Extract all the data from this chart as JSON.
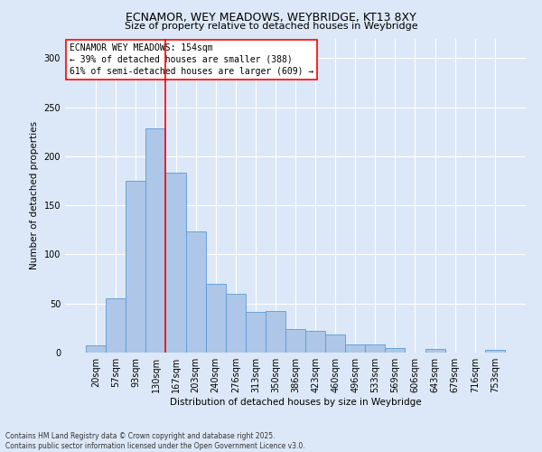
{
  "title_line1": "ECNAMOR, WEY MEADOWS, WEYBRIDGE, KT13 8XY",
  "title_line2": "Size of property relative to detached houses in Weybridge",
  "xlabel": "Distribution of detached houses by size in Weybridge",
  "ylabel": "Number of detached properties",
  "categories": [
    "20sqm",
    "57sqm",
    "93sqm",
    "130sqm",
    "167sqm",
    "203sqm",
    "240sqm",
    "276sqm",
    "313sqm",
    "350sqm",
    "386sqm",
    "423sqm",
    "460sqm",
    "496sqm",
    "533sqm",
    "569sqm",
    "606sqm",
    "643sqm",
    "679sqm",
    "716sqm",
    "753sqm"
  ],
  "values": [
    7,
    55,
    175,
    228,
    183,
    123,
    70,
    60,
    41,
    42,
    24,
    22,
    18,
    8,
    8,
    5,
    0,
    4,
    0,
    0,
    3
  ],
  "bar_color": "#aec6e8",
  "bar_edge_color": "#5b9bd5",
  "background_color": "#dce8f7",
  "grid_color": "#ffffff",
  "vline_color": "red",
  "annotation_text": "ECNAMOR WEY MEADOWS: 154sqm\n← 39% of detached houses are smaller (388)\n61% of semi-detached houses are larger (609) →",
  "annotation_box_color": "white",
  "annotation_box_edge": "red",
  "footnote": "Contains HM Land Registry data © Crown copyright and database right 2025.\nContains public sector information licensed under the Open Government Licence v3.0.",
  "ylim": [
    0,
    320
  ],
  "yticks": [
    0,
    50,
    100,
    150,
    200,
    250,
    300
  ],
  "title1_fontsize": 9,
  "title2_fontsize": 8,
  "ylabel_fontsize": 7.5,
  "xlabel_fontsize": 7.5,
  "tick_fontsize": 7,
  "annot_fontsize": 7,
  "footnote_fontsize": 5.5
}
